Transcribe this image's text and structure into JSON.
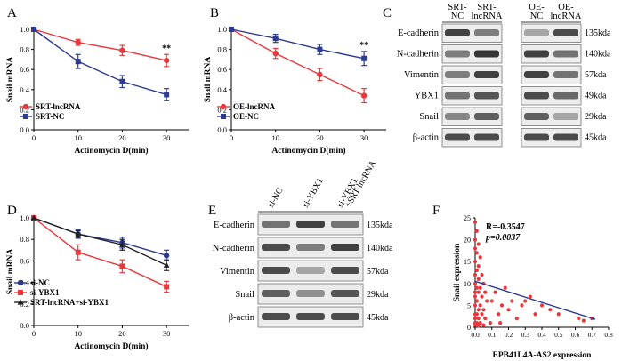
{
  "chart_data": [
    {
      "id": "A",
      "panel_label": "A",
      "type": "line",
      "xlabel": "Actinomycin D(min)",
      "ylabel": "Snail mRNA",
      "x": [
        0,
        10,
        20,
        30
      ],
      "xticks": [
        "0",
        "10",
        "20",
        "30"
      ],
      "xlim": [
        0,
        35
      ],
      "ylim": [
        0,
        1.0
      ],
      "yticks": [
        "0.0",
        "0.2",
        "0.4",
        "0.6",
        "0.8",
        "1.0"
      ],
      "legend_position": "bottom-left",
      "annotation": "**",
      "series": [
        {
          "name": "SRT-lncRNA",
          "color": "#e8383d",
          "marker": "circle",
          "values": [
            1.0,
            0.87,
            0.79,
            0.69
          ],
          "errors": [
            0,
            0.03,
            0.05,
            0.06
          ]
        },
        {
          "name": "SRT-NC",
          "color": "#2b3b8f",
          "marker": "square",
          "values": [
            1.0,
            0.68,
            0.48,
            0.35
          ],
          "errors": [
            0,
            0.07,
            0.06,
            0.06
          ]
        }
      ]
    },
    {
      "id": "B",
      "panel_label": "B",
      "type": "line",
      "xlabel": "Actinomycin D(min)",
      "ylabel": "Snail mRNA",
      "x": [
        0,
        10,
        20,
        30
      ],
      "xticks": [
        "0",
        "10",
        "20",
        "30"
      ],
      "xlim": [
        0,
        35
      ],
      "ylim": [
        0,
        1.0
      ],
      "yticks": [
        "0.0",
        "0.2",
        "0.4",
        "0.6",
        "0.8",
        "1.0"
      ],
      "legend_position": "bottom-left",
      "annotation": "**",
      "series": [
        {
          "name": "OE-lncRNA",
          "color": "#e8383d",
          "marker": "circle",
          "values": [
            1.0,
            0.76,
            0.55,
            0.34
          ],
          "errors": [
            0,
            0.05,
            0.06,
            0.07
          ]
        },
        {
          "name": "OE-NC",
          "color": "#2b3b8f",
          "marker": "square",
          "values": [
            1.0,
            0.91,
            0.8,
            0.71
          ],
          "errors": [
            0,
            0.04,
            0.05,
            0.07
          ]
        }
      ]
    },
    {
      "id": "D",
      "panel_label": "D",
      "type": "line",
      "xlabel": "Actinomycin D(min)",
      "ylabel": "Snail mRNA",
      "x": [
        0,
        10,
        20,
        30
      ],
      "xticks": [
        "0",
        "10",
        "20",
        "30"
      ],
      "xlim": [
        0,
        35
      ],
      "ylim": [
        0,
        1.0
      ],
      "yticks": [
        "0.0",
        "0.2",
        "0.4",
        "0.6",
        "0.8",
        "1.0"
      ],
      "legend_position": "bottom-left",
      "series": [
        {
          "name": "si-NC",
          "color": "#2b3b8f",
          "marker": "circle",
          "values": [
            1.0,
            0.85,
            0.77,
            0.65
          ],
          "errors": [
            0,
            0.04,
            0.05,
            0.05
          ]
        },
        {
          "name": "si-YBX1",
          "color": "#e8383d",
          "marker": "square",
          "values": [
            1.0,
            0.68,
            0.55,
            0.36
          ],
          "errors": [
            0,
            0.07,
            0.06,
            0.05
          ]
        },
        {
          "name": "SRT-lncRNA+si-YBX1",
          "color": "#222222",
          "marker": "triangle",
          "values": [
            1.0,
            0.85,
            0.75,
            0.56
          ],
          "errors": [
            0,
            0.03,
            0.05,
            0.05
          ]
        }
      ]
    },
    {
      "id": "F",
      "panel_label": "F",
      "type": "scatter",
      "xlabel": "EPB41L4A-AS2 expression",
      "ylabel": "Snail expression",
      "xlim": [
        0,
        0.8
      ],
      "ylim": [
        0,
        25
      ],
      "xticks": [
        "0.0",
        "0.1",
        "0.2",
        "0.3",
        "0.4",
        "0.5",
        "0.6",
        "0.7",
        "0.8"
      ],
      "yticks": [
        "0",
        "5",
        "10",
        "15",
        "20",
        "25"
      ],
      "annotations": [
        "R=-0.3547",
        "p=0.0037"
      ],
      "point_color": "#e8383d",
      "fit_color": "#2b3b8f",
      "fit_line": {
        "x": [
          0,
          0.72
        ],
        "y": [
          10.5,
          1.8
        ]
      },
      "points": [
        [
          0.0,
          24
        ],
        [
          0.01,
          22
        ],
        [
          0.0,
          20
        ],
        [
          0.02,
          19
        ],
        [
          0.0,
          18
        ],
        [
          0.01,
          17
        ],
        [
          0.03,
          16
        ],
        [
          0.0,
          15
        ],
        [
          0.02,
          14
        ],
        [
          0.01,
          13
        ],
        [
          0.0,
          12
        ],
        [
          0.04,
          12
        ],
        [
          0.02,
          11
        ],
        [
          0.0,
          10
        ],
        [
          0.05,
          10
        ],
        [
          0.01,
          9
        ],
        [
          0.03,
          9
        ],
        [
          0.0,
          8
        ],
        [
          0.02,
          8
        ],
        [
          0.06,
          8
        ],
        [
          0.0,
          7
        ],
        [
          0.04,
          7
        ],
        [
          0.01,
          6
        ],
        [
          0.07,
          6
        ],
        [
          0.0,
          5
        ],
        [
          0.03,
          5
        ],
        [
          0.02,
          4
        ],
        [
          0.05,
          4
        ],
        [
          0.0,
          3
        ],
        [
          0.01,
          3
        ],
        [
          0.04,
          3
        ],
        [
          0.0,
          2
        ],
        [
          0.02,
          2
        ],
        [
          0.06,
          2
        ],
        [
          0.0,
          1
        ],
        [
          0.01,
          1
        ],
        [
          0.03,
          1
        ],
        [
          0.0,
          0.5
        ],
        [
          0.02,
          0.3
        ],
        [
          0.05,
          0.5
        ],
        [
          0.1,
          6
        ],
        [
          0.12,
          8
        ],
        [
          0.14,
          3
        ],
        [
          0.16,
          5
        ],
        [
          0.18,
          9
        ],
        [
          0.2,
          4
        ],
        [
          0.22,
          6
        ],
        [
          0.25,
          2
        ],
        [
          0.28,
          5
        ],
        [
          0.3,
          6
        ],
        [
          0.33,
          7
        ],
        [
          0.36,
          3
        ],
        [
          0.4,
          5
        ],
        [
          0.45,
          4
        ],
        [
          0.5,
          3
        ],
        [
          0.62,
          2
        ],
        [
          0.65,
          1.5
        ],
        [
          0.7,
          2
        ],
        [
          0.09,
          1
        ],
        [
          0.15,
          1
        ]
      ]
    },
    {
      "id": "C",
      "panel_label": "C",
      "type": "blot",
      "groups": [
        {
          "lanes": [
            "SRT-\nNC",
            "SRT-\nlncRNA"
          ]
        },
        {
          "lanes": [
            "OE-\nNC",
            "OE-\nlncRNA"
          ]
        }
      ],
      "rows": [
        {
          "protein": "E-cadherin",
          "size": "135kda",
          "g1": [
            0.85,
            0.55
          ],
          "g2": [
            0.35,
            0.8
          ]
        },
        {
          "protein": "N-cadherin",
          "size": "140kda",
          "g1": [
            0.55,
            0.9
          ],
          "g2": [
            0.85,
            0.6
          ]
        },
        {
          "protein": "Vimentin",
          "size": "57kda",
          "g1": [
            0.55,
            0.85
          ],
          "g2": [
            0.85,
            0.6
          ]
        },
        {
          "protein": "YBX1",
          "size": "49kda",
          "g1": [
            0.6,
            0.75
          ],
          "g2": [
            0.8,
            0.65
          ]
        },
        {
          "protein": "Snail",
          "size": "29kda",
          "g1": [
            0.5,
            0.7
          ],
          "g2": [
            0.7,
            0.35
          ]
        },
        {
          "protein": "β-actin",
          "size": "45kda",
          "g1": [
            0.8,
            0.8
          ],
          "g2": [
            0.8,
            0.8
          ]
        }
      ]
    },
    {
      "id": "E",
      "panel_label": "E",
      "type": "blot",
      "lanes": [
        "si-NC",
        "si-YBX1",
        "si-YBX1\n+SRT-lncRNA"
      ],
      "rows": [
        {
          "protein": "E-cadherin",
          "size": "135kda",
          "bands": [
            0.6,
            0.85,
            0.6
          ]
        },
        {
          "protein": "N-cadherin",
          "size": "140kda",
          "bands": [
            0.8,
            0.55,
            0.85
          ]
        },
        {
          "protein": "Vimentin",
          "size": "57kda",
          "bands": [
            0.8,
            0.35,
            0.8
          ]
        },
        {
          "protein": "Snail",
          "size": "29kda",
          "bands": [
            0.7,
            0.45,
            0.75
          ]
        },
        {
          "protein": "β-actin",
          "size": "45kda",
          "bands": [
            0.8,
            0.8,
            0.8
          ]
        }
      ]
    }
  ]
}
